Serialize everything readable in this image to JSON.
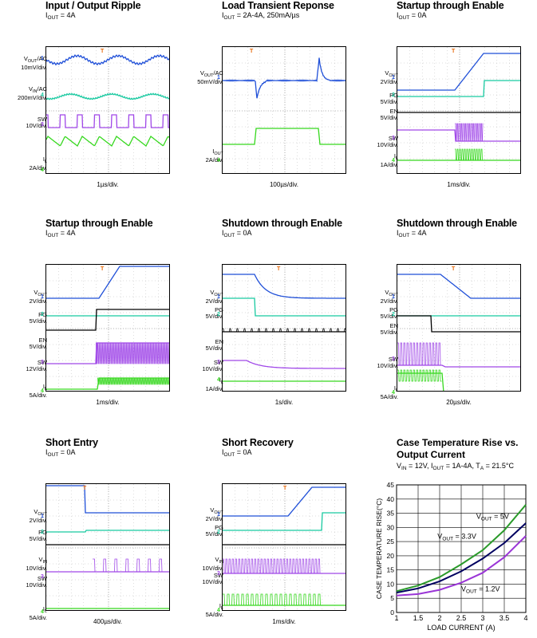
{
  "panels": [
    {
      "id": "p1",
      "title": "Input / Output Ripple",
      "subtitle_main": "I",
      "subtitle_sub": "OUT",
      "subtitle_rest": " = 4A",
      "timebase": "1µs/div.",
      "channels": [
        {
          "main": "V",
          "sub": "OUT",
          "rest": "/AC",
          "line2": "10mV/div.",
          "marker": "1",
          "color": "#1f4fd8"
        },
        {
          "main": "V",
          "sub": "IN",
          "rest": "/AC",
          "line2": "200mV/div.",
          "marker": "4",
          "color": "#18c9a0"
        },
        {
          "main": "SW",
          "sub": "",
          "rest": "",
          "line2": "10V/div.",
          "marker": "3",
          "color": "#a048e8"
        },
        {
          "main": "I",
          "sub": "L",
          "rest": "",
          "line2": "2A/div.",
          "marker": "4",
          "color": "#36d81e"
        }
      ]
    },
    {
      "id": "p2",
      "title": "Load Transient Reponse",
      "subtitle_main": "I",
      "subtitle_sub": "OUT",
      "subtitle_rest": " = 2A-4A, 250mA/µs",
      "timebase": "100µs/div.",
      "channels": [
        {
          "main": "V",
          "sub": "OUT",
          "rest": "/AC",
          "line2": "50mV/div.",
          "marker": "1",
          "color": "#1f4fd8"
        },
        {
          "main": "I",
          "sub": "OUT",
          "rest": "",
          "line2": "2A/div.",
          "marker": "4",
          "color": "#36d81e"
        }
      ]
    },
    {
      "id": "p3",
      "title": "Startup through Enable",
      "subtitle_main": "I",
      "subtitle_sub": "OUT",
      "subtitle_rest": " = 0A",
      "timebase": "1ms/div.",
      "channels": [
        {
          "main": "V",
          "sub": "OUT",
          "rest": "",
          "line2": "2V/div.",
          "marker": "1",
          "color": "#1f4fd8"
        },
        {
          "main": "PG",
          "sub": "",
          "rest": "",
          "line2": "5V/div.",
          "marker": "2",
          "color": "#18c9a0"
        },
        {
          "main": "EN",
          "sub": "",
          "rest": "",
          "line2": "5V/div.",
          "marker": "",
          "color": "#000000"
        },
        {
          "main": "SW",
          "sub": "",
          "rest": "",
          "line2": "10V/div.",
          "marker": "3",
          "color": "#a048e8"
        },
        {
          "main": "I",
          "sub": "L",
          "rest": "",
          "line2": "1A/div.",
          "marker": "4",
          "color": "#36d81e"
        }
      ]
    },
    {
      "id": "p4",
      "title": "Startup through Enable",
      "subtitle_main": "I",
      "subtitle_sub": "OUT",
      "subtitle_rest": " = 4A",
      "timebase": "1ms/div.",
      "channels": [
        {
          "main": "V",
          "sub": "OUT",
          "rest": "",
          "line2": "2V/div.",
          "marker": "1",
          "color": "#1f4fd8"
        },
        {
          "main": "PG",
          "sub": "",
          "rest": "",
          "line2": "5V/div.",
          "marker": "2",
          "color": "#18c9a0"
        },
        {
          "main": "EN",
          "sub": "",
          "rest": "",
          "line2": "5V/div.",
          "marker": "",
          "color": "#000000"
        },
        {
          "main": "SW",
          "sub": "",
          "rest": "",
          "line2": "12V/div.",
          "marker": "3",
          "color": "#a048e8"
        },
        {
          "main": "I",
          "sub": "L",
          "rest": "",
          "line2": "5A/div.",
          "marker": "4",
          "color": "#36d81e"
        }
      ]
    },
    {
      "id": "p5",
      "title": "Shutdown through Enable",
      "subtitle_main": "I",
      "subtitle_sub": "OUT",
      "subtitle_rest": " = 0A",
      "timebase": "1s/div.",
      "channels": [
        {
          "main": "V",
          "sub": "OUT",
          "rest": "",
          "line2": "2V/div.",
          "marker": "1",
          "color": "#1f4fd8"
        },
        {
          "main": "PG",
          "sub": "",
          "rest": "",
          "line2": "5V/div.",
          "marker": "2",
          "color": "#18c9a0"
        },
        {
          "main": "EN",
          "sub": "",
          "rest": "",
          "line2": "5V/div.",
          "marker": "",
          "color": "#000000"
        },
        {
          "main": "SW",
          "sub": "",
          "rest": "",
          "line2": "10V/div.",
          "marker": "3",
          "color": "#a048e8"
        },
        {
          "main": "I",
          "sub": "L",
          "rest": "",
          "line2": "1A/div.",
          "marker": "4",
          "color": "#36d81e"
        }
      ]
    },
    {
      "id": "p6",
      "title": "Shutdown through Enable",
      "subtitle_main": "I",
      "subtitle_sub": "OUT",
      "subtitle_rest": " = 4A",
      "timebase": "20µs/div.",
      "channels": [
        {
          "main": "V",
          "sub": "OUT",
          "rest": "",
          "line2": "2V/div.",
          "marker": "1",
          "color": "#1f4fd8"
        },
        {
          "main": "PG",
          "sub": "",
          "rest": "",
          "line2": "5V/div.",
          "marker": "2",
          "color": "#18c9a0"
        },
        {
          "main": "EN",
          "sub": "",
          "rest": "",
          "line2": "5V/div.",
          "marker": "",
          "color": "#000000"
        },
        {
          "main": "SW",
          "sub": "",
          "rest": "",
          "line2": "10V/div.",
          "marker": "3",
          "color": "#a048e8"
        },
        {
          "main": "I",
          "sub": "L",
          "rest": "",
          "line2": "5A/div.",
          "marker": "4",
          "color": "#36d81e"
        }
      ]
    },
    {
      "id": "p7",
      "title": "Short Entry",
      "subtitle_main": "I",
      "subtitle_sub": "OUT",
      "subtitle_rest": " = 0A",
      "timebase": "400µs/div.",
      "channels": [
        {
          "main": "V",
          "sub": "OUT",
          "rest": "",
          "line2": "2V/div.",
          "marker": "1",
          "color": "#1f4fd8"
        },
        {
          "main": "PG",
          "sub": "",
          "rest": "",
          "line2": "5V/div.",
          "marker": "2",
          "color": "#18c9a0"
        },
        {
          "main": "V",
          "sub": "IN",
          "rest": "",
          "line2": "10V/div.",
          "marker": "",
          "color": "#000000"
        },
        {
          "main": "SW",
          "sub": "",
          "rest": "",
          "line2": "10V/div.",
          "marker": "3",
          "color": "#a048e8"
        },
        {
          "main": "I",
          "sub": "L",
          "rest": "",
          "line2": "5A/div.",
          "marker": "4",
          "color": "#36d81e"
        }
      ]
    },
    {
      "id": "p8",
      "title": "Short Recovery",
      "subtitle_main": "I",
      "subtitle_sub": "OUT",
      "subtitle_rest": " = 0A",
      "timebase": "1ms/div.",
      "channels": [
        {
          "main": "V",
          "sub": "OUT",
          "rest": "",
          "line2": "2V/div.",
          "marker": "1",
          "color": "#1f4fd8"
        },
        {
          "main": "PG",
          "sub": "",
          "rest": "",
          "line2": "5V/div.",
          "marker": "2",
          "color": "#18c9a0"
        },
        {
          "main": "V",
          "sub": "IN",
          "rest": "",
          "line2": "10V/div.",
          "marker": "",
          "color": "#000000"
        },
        {
          "main": "SW",
          "sub": "",
          "rest": "",
          "line2": "10V/div.",
          "marker": "3",
          "color": "#a048e8"
        },
        {
          "main": "I",
          "sub": "L",
          "rest": "",
          "line2": "5A/div.",
          "marker": "4",
          "color": "#36d81e"
        }
      ]
    }
  ],
  "trigger_marker": "T",
  "chart9": {
    "title_line1": "Case Temperature Rise  vs.",
    "title_line2": "Output Current",
    "conditions": {
      "a_main": "V",
      "a_sub": "IN",
      "a_rest": " = 12V, I",
      "b_sub": "OUT",
      "b_rest": " = 1A-4A, T",
      "c_sub": "A",
      "c_rest": " = 21.5°C"
    }
  },
  "chart_data": {
    "type": "line",
    "title": "Case Temperature Rise  vs. Output Current",
    "xlabel": "LOAD CURRENT (A)",
    "ylabel": "CASE TEMPERATURE RISE(°C)",
    "xlim": [
      1,
      4
    ],
    "ylim": [
      0,
      45
    ],
    "xticks": [
      1,
      1.5,
      2,
      2.5,
      3,
      3.5,
      4
    ],
    "xtick_labels": [
      "1",
      "1.5",
      "2",
      "2.5",
      "3",
      "3.5",
      "4"
    ],
    "yticks": [
      0,
      5,
      10,
      15,
      20,
      25,
      30,
      35,
      40,
      45
    ],
    "ytick_labels": [
      "0",
      "5",
      "10",
      "15",
      "20",
      "25",
      "30",
      "35",
      "40",
      "45"
    ],
    "grid": true,
    "x": [
      1,
      1.5,
      2,
      2.5,
      3,
      3.5,
      4
    ],
    "series": [
      {
        "label_main": "V",
        "label_sub": "OUT",
        "label_rest": " = 5V",
        "color": "#2a9a2a",
        "values": [
          7.5,
          9.5,
          12.5,
          17,
          22,
          29,
          38
        ]
      },
      {
        "label_main": "V",
        "label_sub": "OUT",
        "label_rest": " = 3.3V",
        "color": "#000060",
        "values": [
          7,
          8.5,
          11,
          14.5,
          19,
          24.5,
          31.5
        ]
      },
      {
        "label_main": "V",
        "label_sub": "OUT",
        "label_rest": " = 1.2V",
        "color": "#9a35d6",
        "values": [
          6,
          6.5,
          8,
          10.5,
          14,
          19.5,
          27
        ]
      }
    ]
  }
}
